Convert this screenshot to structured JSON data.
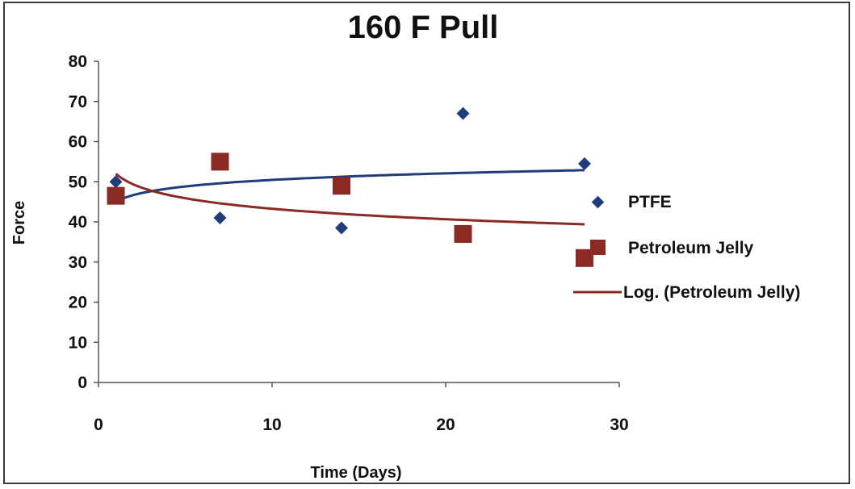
{
  "chart_data": {
    "type": "scatter",
    "title": "160 F Pull",
    "xlabel": "Time (Days)",
    "ylabel": "Force",
    "xlim": [
      0,
      30
    ],
    "ylim": [
      0,
      80
    ],
    "xticks": [
      0,
      10,
      20,
      30
    ],
    "yticks": [
      0,
      10,
      20,
      30,
      40,
      50,
      60,
      70,
      80
    ],
    "grid": false,
    "legend_position": "right",
    "series": [
      {
        "name": "PTFE",
        "marker": "diamond",
        "color": "#1f3d7a",
        "x": [
          1,
          7,
          14,
          21,
          28
        ],
        "y": [
          50,
          41,
          38.5,
          67,
          54.5
        ],
        "trendline": {
          "kind": "logarithmic",
          "color": "#1f3d7a",
          "legend": false
        }
      },
      {
        "name": "Petroleum Jelly",
        "marker": "square",
        "color": "#8b2a22",
        "x": [
          1,
          7,
          14,
          21,
          28
        ],
        "y": [
          46.5,
          55,
          49,
          37,
          31
        ],
        "trendline": {
          "kind": "logarithmic",
          "color": "#8b2a22",
          "legend": true,
          "name": "Log. (Petroleum Jelly)"
        }
      }
    ]
  }
}
